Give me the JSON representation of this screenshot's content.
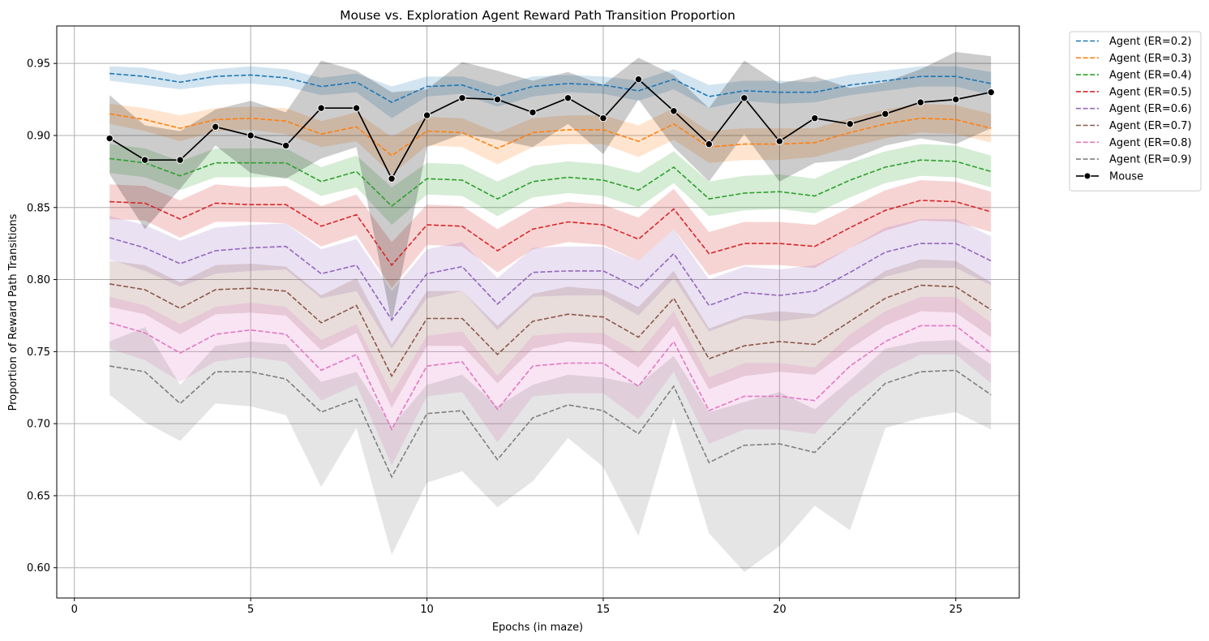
{
  "chart_data": {
    "type": "line",
    "title": "Mouse vs. Exploration Agent Reward Path Transition Proportion",
    "xlabel": "Epochs (in maze)",
    "ylabel": "Proportion of Reward Path Transitions",
    "xlim": [
      -0.5,
      26.8
    ],
    "ylim": [
      0.579,
      0.976
    ],
    "xticks": [
      0,
      5,
      10,
      15,
      20,
      25
    ],
    "yticks": [
      0.6,
      0.65,
      0.7,
      0.75,
      0.8,
      0.85,
      0.9,
      0.95
    ],
    "xtick_labels": [
      "0",
      "5",
      "10",
      "15",
      "20",
      "25"
    ],
    "ytick_labels": [
      "0.60",
      "0.65",
      "0.70",
      "0.75",
      "0.80",
      "0.85",
      "0.90",
      "0.95"
    ],
    "grid": true,
    "legend_position": "outside-top-right",
    "x": [
      1,
      2,
      3,
      4,
      5,
      6,
      7,
      8,
      9,
      10,
      11,
      12,
      13,
      14,
      15,
      16,
      17,
      18,
      19,
      20,
      21,
      22,
      23,
      24,
      25,
      26
    ],
    "series": [
      {
        "name": "Agent (ER=0.2)",
        "color": "#1f77b4",
        "style": "dashed",
        "values": [
          0.943,
          0.941,
          0.937,
          0.941,
          0.942,
          0.94,
          0.934,
          0.937,
          0.923,
          0.934,
          0.935,
          0.927,
          0.934,
          0.936,
          0.935,
          0.931,
          0.939,
          0.927,
          0.931,
          0.93,
          0.93,
          0.935,
          0.938,
          0.941,
          0.941,
          0.936
        ],
        "lower": [
          0.938,
          0.935,
          0.932,
          0.935,
          0.936,
          0.934,
          0.928,
          0.93,
          0.912,
          0.927,
          0.929,
          0.92,
          0.927,
          0.93,
          0.929,
          0.924,
          0.932,
          0.919,
          0.924,
          0.922,
          0.923,
          0.928,
          0.931,
          0.934,
          0.934,
          0.928
        ],
        "upper": [
          0.948,
          0.947,
          0.942,
          0.946,
          0.948,
          0.946,
          0.94,
          0.943,
          0.934,
          0.941,
          0.941,
          0.934,
          0.941,
          0.942,
          0.941,
          0.938,
          0.946,
          0.935,
          0.938,
          0.938,
          0.937,
          0.942,
          0.945,
          0.948,
          0.948,
          0.944
        ]
      },
      {
        "name": "Agent (ER=0.3)",
        "color": "#ff7f0e",
        "style": "dashed",
        "values": [
          0.915,
          0.911,
          0.905,
          0.911,
          0.912,
          0.91,
          0.901,
          0.906,
          0.886,
          0.903,
          0.902,
          0.891,
          0.902,
          0.904,
          0.904,
          0.896,
          0.908,
          0.892,
          0.894,
          0.894,
          0.895,
          0.902,
          0.908,
          0.912,
          0.911,
          0.905
        ],
        "lower": [
          0.908,
          0.903,
          0.896,
          0.903,
          0.904,
          0.901,
          0.892,
          0.896,
          0.873,
          0.893,
          0.892,
          0.88,
          0.892,
          0.894,
          0.894,
          0.885,
          0.897,
          0.881,
          0.883,
          0.883,
          0.885,
          0.892,
          0.898,
          0.902,
          0.901,
          0.895
        ],
        "upper": [
          0.922,
          0.919,
          0.914,
          0.919,
          0.92,
          0.919,
          0.91,
          0.916,
          0.899,
          0.913,
          0.912,
          0.902,
          0.912,
          0.914,
          0.914,
          0.907,
          0.919,
          0.903,
          0.905,
          0.905,
          0.905,
          0.912,
          0.918,
          0.922,
          0.921,
          0.915
        ]
      },
      {
        "name": "Agent (ER=0.4)",
        "color": "#2ca02c",
        "style": "dashed",
        "values": [
          0.884,
          0.881,
          0.872,
          0.881,
          0.881,
          0.881,
          0.868,
          0.875,
          0.851,
          0.87,
          0.869,
          0.856,
          0.868,
          0.871,
          0.869,
          0.862,
          0.878,
          0.856,
          0.86,
          0.861,
          0.858,
          0.869,
          0.878,
          0.883,
          0.882,
          0.875
        ],
        "lower": [
          0.874,
          0.871,
          0.862,
          0.871,
          0.871,
          0.871,
          0.858,
          0.864,
          0.838,
          0.859,
          0.858,
          0.844,
          0.857,
          0.86,
          0.858,
          0.85,
          0.867,
          0.844,
          0.848,
          0.849,
          0.846,
          0.857,
          0.867,
          0.872,
          0.871,
          0.864
        ],
        "upper": [
          0.894,
          0.891,
          0.882,
          0.891,
          0.891,
          0.891,
          0.878,
          0.886,
          0.864,
          0.881,
          0.88,
          0.868,
          0.879,
          0.882,
          0.88,
          0.874,
          0.889,
          0.868,
          0.872,
          0.873,
          0.87,
          0.881,
          0.889,
          0.894,
          0.893,
          0.886
        ]
      },
      {
        "name": "Agent (ER=0.5)",
        "color": "#d62728",
        "style": "dashed",
        "values": [
          0.854,
          0.853,
          0.842,
          0.853,
          0.852,
          0.852,
          0.837,
          0.845,
          0.81,
          0.838,
          0.837,
          0.82,
          0.835,
          0.84,
          0.838,
          0.828,
          0.849,
          0.818,
          0.825,
          0.825,
          0.823,
          0.836,
          0.848,
          0.855,
          0.854,
          0.847
        ],
        "lower": [
          0.842,
          0.841,
          0.829,
          0.84,
          0.84,
          0.839,
          0.823,
          0.831,
          0.794,
          0.824,
          0.823,
          0.805,
          0.821,
          0.826,
          0.824,
          0.813,
          0.835,
          0.803,
          0.81,
          0.81,
          0.808,
          0.822,
          0.834,
          0.841,
          0.84,
          0.833
        ],
        "upper": [
          0.866,
          0.865,
          0.855,
          0.866,
          0.864,
          0.865,
          0.851,
          0.859,
          0.826,
          0.852,
          0.851,
          0.835,
          0.849,
          0.854,
          0.852,
          0.843,
          0.863,
          0.833,
          0.84,
          0.84,
          0.838,
          0.85,
          0.862,
          0.869,
          0.868,
          0.861
        ]
      },
      {
        "name": "Agent (ER=0.6)",
        "color": "#9467bd",
        "style": "dashed",
        "values": [
          0.829,
          0.822,
          0.811,
          0.82,
          0.822,
          0.823,
          0.804,
          0.81,
          0.772,
          0.804,
          0.809,
          0.783,
          0.805,
          0.806,
          0.806,
          0.794,
          0.818,
          0.782,
          0.791,
          0.789,
          0.792,
          0.805,
          0.819,
          0.825,
          0.825,
          0.813
        ],
        "lower": [
          0.814,
          0.806,
          0.795,
          0.804,
          0.806,
          0.807,
          0.787,
          0.792,
          0.752,
          0.787,
          0.792,
          0.765,
          0.788,
          0.789,
          0.789,
          0.775,
          0.801,
          0.764,
          0.773,
          0.771,
          0.774,
          0.788,
          0.802,
          0.808,
          0.808,
          0.796
        ],
        "upper": [
          0.844,
          0.838,
          0.827,
          0.836,
          0.838,
          0.839,
          0.821,
          0.828,
          0.792,
          0.821,
          0.826,
          0.801,
          0.822,
          0.823,
          0.823,
          0.813,
          0.835,
          0.8,
          0.809,
          0.807,
          0.81,
          0.822,
          0.836,
          0.842,
          0.842,
          0.83
        ]
      },
      {
        "name": "Agent (ER=0.7)",
        "color": "#8c564b",
        "style": "dashed",
        "values": [
          0.797,
          0.793,
          0.78,
          0.793,
          0.794,
          0.792,
          0.77,
          0.782,
          0.733,
          0.773,
          0.773,
          0.748,
          0.771,
          0.776,
          0.774,
          0.76,
          0.787,
          0.745,
          0.754,
          0.757,
          0.755,
          0.771,
          0.787,
          0.796,
          0.795,
          0.779
        ],
        "lower": [
          0.781,
          0.776,
          0.762,
          0.776,
          0.777,
          0.775,
          0.751,
          0.763,
          0.711,
          0.754,
          0.754,
          0.728,
          0.752,
          0.757,
          0.755,
          0.739,
          0.768,
          0.724,
          0.733,
          0.736,
          0.734,
          0.752,
          0.768,
          0.778,
          0.777,
          0.76
        ],
        "upper": [
          0.813,
          0.81,
          0.798,
          0.81,
          0.811,
          0.809,
          0.789,
          0.801,
          0.755,
          0.792,
          0.792,
          0.768,
          0.79,
          0.795,
          0.793,
          0.781,
          0.806,
          0.766,
          0.775,
          0.778,
          0.776,
          0.79,
          0.806,
          0.814,
          0.813,
          0.798
        ]
      },
      {
        "name": "Agent (ER=0.8)",
        "color": "#e377c2",
        "style": "dashed",
        "values": [
          0.77,
          0.763,
          0.749,
          0.762,
          0.765,
          0.762,
          0.737,
          0.748,
          0.696,
          0.74,
          0.743,
          0.71,
          0.74,
          0.742,
          0.742,
          0.726,
          0.757,
          0.709,
          0.719,
          0.719,
          0.716,
          0.74,
          0.757,
          0.768,
          0.768,
          0.749
        ],
        "lower": [
          0.752,
          0.744,
          0.729,
          0.743,
          0.746,
          0.743,
          0.716,
          0.727,
          0.671,
          0.719,
          0.722,
          0.687,
          0.719,
          0.721,
          0.721,
          0.703,
          0.736,
          0.686,
          0.696,
          0.696,
          0.693,
          0.718,
          0.736,
          0.748,
          0.748,
          0.728
        ],
        "upper": [
          0.788,
          0.782,
          0.769,
          0.781,
          0.784,
          0.781,
          0.758,
          0.769,
          0.721,
          0.761,
          0.764,
          0.733,
          0.761,
          0.763,
          0.763,
          0.749,
          0.778,
          0.732,
          0.742,
          0.742,
          0.739,
          0.762,
          0.778,
          0.788,
          0.788,
          0.77
        ]
      },
      {
        "name": "Agent (ER=0.9)",
        "color": "#7f7f7f",
        "style": "dashed",
        "values": [
          0.74,
          0.736,
          0.714,
          0.736,
          0.736,
          0.731,
          0.708,
          0.717,
          0.663,
          0.707,
          0.709,
          0.675,
          0.704,
          0.713,
          0.709,
          0.693,
          0.726,
          0.673,
          0.685,
          0.686,
          0.68,
          0.704,
          0.728,
          0.736,
          0.737,
          0.72
        ],
        "lower": [
          0.72,
          0.701,
          0.688,
          0.714,
          0.712,
          0.706,
          0.656,
          0.697,
          0.609,
          0.659,
          0.667,
          0.642,
          0.66,
          0.69,
          0.67,
          0.622,
          0.704,
          0.624,
          0.597,
          0.615,
          0.643,
          0.626,
          0.697,
          0.704,
          0.708,
          0.696
        ],
        "upper": [
          0.757,
          0.767,
          0.727,
          0.754,
          0.757,
          0.755,
          0.729,
          0.736,
          0.698,
          0.727,
          0.734,
          0.712,
          0.727,
          0.734,
          0.732,
          0.727,
          0.747,
          0.708,
          0.715,
          0.722,
          0.71,
          0.73,
          0.752,
          0.757,
          0.758,
          0.741
        ]
      }
    ],
    "mouse": {
      "name": "Mouse",
      "color": "#000000",
      "style": "solid-marker",
      "values": [
        0.898,
        0.883,
        0.883,
        0.906,
        0.9,
        0.893,
        0.919,
        0.919,
        0.87,
        0.914,
        0.926,
        0.925,
        0.916,
        0.926,
        0.912,
        0.939,
        0.917,
        0.894,
        0.926,
        0.896,
        0.912,
        0.908,
        0.915,
        0.923,
        0.925,
        0.93
      ],
      "lower": [
        0.873,
        0.835,
        0.863,
        0.893,
        0.874,
        0.87,
        0.884,
        0.892,
        0.77,
        0.892,
        0.901,
        0.897,
        0.892,
        0.908,
        0.887,
        0.925,
        0.892,
        0.868,
        0.901,
        0.868,
        0.881,
        0.883,
        0.893,
        0.898,
        0.894,
        0.905
      ],
      "upper": [
        0.928,
        0.907,
        0.903,
        0.918,
        0.924,
        0.916,
        0.952,
        0.945,
        0.93,
        0.932,
        0.951,
        0.945,
        0.938,
        0.944,
        0.935,
        0.954,
        0.942,
        0.919,
        0.952,
        0.936,
        0.941,
        0.933,
        0.937,
        0.946,
        0.958,
        0.955
      ]
    }
  }
}
